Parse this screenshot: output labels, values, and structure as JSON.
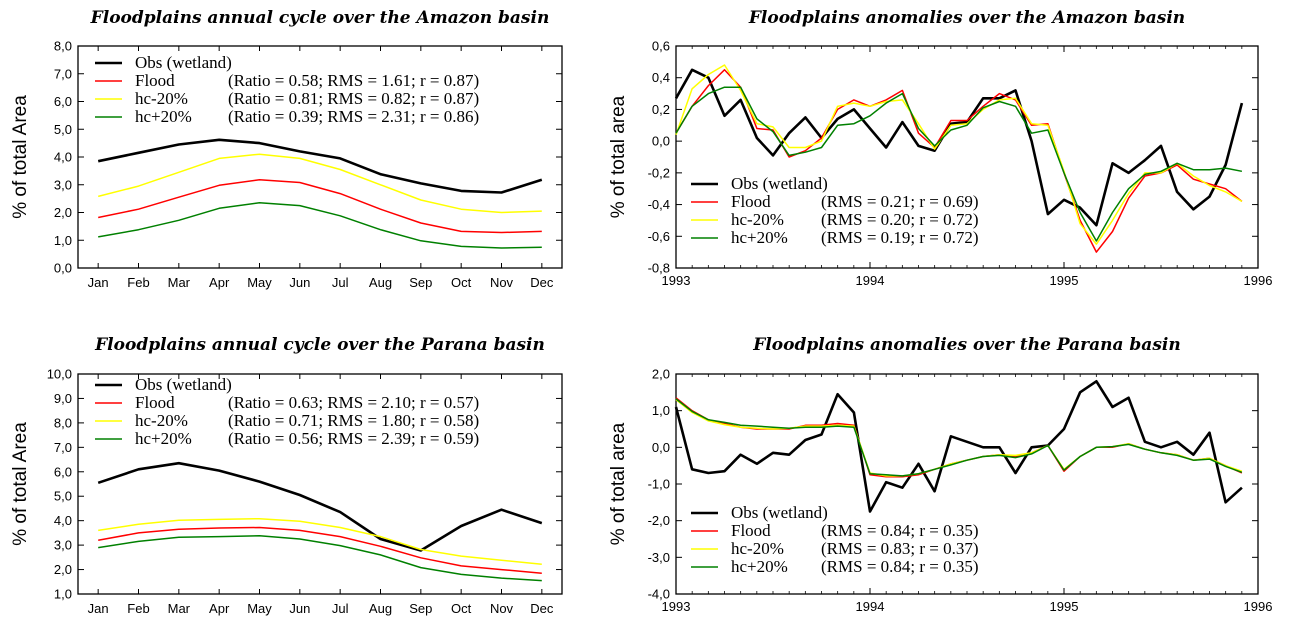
{
  "chart_data": [
    {
      "type": "line",
      "title": "Floodplains annual cycle over the Amazon basin",
      "xlabel": "",
      "ylabel": "% of total Area",
      "x_kind": "category",
      "categories": [
        "Jan",
        "Feb",
        "Mar",
        "Apr",
        "May",
        "Jun",
        "Jul",
        "Aug",
        "Sep",
        "Oct",
        "Nov",
        "Dec"
      ],
      "ylim": [
        0,
        8
      ],
      "yticks": [
        0,
        1,
        2,
        3,
        4,
        5,
        6,
        7,
        8
      ],
      "ytick_labels": [
        "0,0",
        "1,0",
        "2,0",
        "3,0",
        "4,0",
        "5,0",
        "6,0",
        "7,0",
        "8,0"
      ],
      "grid": false,
      "legend_position": "top-left",
      "series": [
        {
          "name": "Obs (wetland)",
          "stats": "",
          "color": "#000000",
          "values": [
            3.85,
            4.15,
            4.45,
            4.62,
            4.5,
            4.2,
            3.95,
            3.38,
            3.05,
            2.78,
            2.72,
            3.18
          ]
        },
        {
          "name": "Flood",
          "stats": "(Ratio = 0.58; RMS = 1.61; r = 0.87)",
          "color": "#ff0000",
          "values": [
            1.82,
            2.12,
            2.55,
            2.98,
            3.18,
            3.08,
            2.68,
            2.12,
            1.62,
            1.32,
            1.28,
            1.32
          ]
        },
        {
          "name": "hc-20%",
          "stats": "(Ratio = 0.81; RMS = 0.82; r = 0.87)",
          "color": "#ffff00",
          "values": [
            2.58,
            2.95,
            3.45,
            3.95,
            4.1,
            3.95,
            3.55,
            3.0,
            2.45,
            2.12,
            2.0,
            2.05
          ]
        },
        {
          "name": "hc+20%",
          "stats": "(Ratio = 0.39; RMS = 2.31; r = 0.86)",
          "color": "#008000",
          "values": [
            1.12,
            1.38,
            1.72,
            2.15,
            2.35,
            2.25,
            1.88,
            1.38,
            0.98,
            0.78,
            0.72,
            0.75
          ]
        }
      ]
    },
    {
      "type": "line",
      "title": "Floodplains anomalies over the Amazon basin",
      "xlabel": "",
      "ylabel": "% of total area",
      "x_kind": "time",
      "xlim": [
        1993,
        1996
      ],
      "xticks": [
        1993,
        1994,
        1995,
        1996
      ],
      "xtick_labels": [
        "1993",
        "1994",
        "1995",
        "1996"
      ],
      "ylim": [
        -0.8,
        0.6
      ],
      "yticks": [
        -0.8,
        -0.6,
        -0.4,
        -0.2,
        0,
        0.2,
        0.4,
        0.6
      ],
      "ytick_labels": [
        "-0,8",
        "-0,6",
        "-0,4",
        "-0,2",
        "0,0",
        "0,2",
        "0,4",
        "0,6"
      ],
      "grid": false,
      "legend_position": "bottom-left",
      "x": [
        1993.0,
        1993.083,
        1993.167,
        1993.25,
        1993.333,
        1993.417,
        1993.5,
        1993.583,
        1993.667,
        1993.75,
        1993.833,
        1993.917,
        1994.0,
        1994.083,
        1994.167,
        1994.25,
        1994.333,
        1994.417,
        1994.5,
        1994.583,
        1994.667,
        1994.75,
        1994.833,
        1994.917,
        1995.0,
        1995.083,
        1995.167,
        1995.25,
        1995.333,
        1995.417,
        1995.5,
        1995.583,
        1995.667,
        1995.75,
        1995.833,
        1995.917
      ],
      "series": [
        {
          "name": "Obs (wetland)",
          "stats": "",
          "color": "#000000",
          "values": [
            0.27,
            0.45,
            0.4,
            0.16,
            0.26,
            0.02,
            -0.09,
            0.05,
            0.15,
            0.02,
            0.14,
            0.2,
            0.08,
            -0.04,
            0.12,
            -0.03,
            -0.06,
            0.11,
            0.12,
            0.27,
            0.27,
            0.32,
            0.0,
            -0.46,
            -0.37,
            -0.42,
            -0.53,
            -0.14,
            -0.2,
            -0.12,
            -0.03,
            -0.32,
            -0.43,
            -0.35,
            -0.15,
            0.24
          ]
        },
        {
          "name": "Flood",
          "stats": "(RMS = 0.21; r = 0.69)",
          "color": "#ff0000",
          "values": [
            0.05,
            0.22,
            0.35,
            0.45,
            0.34,
            0.08,
            0.07,
            -0.1,
            -0.06,
            0.02,
            0.2,
            0.26,
            0.22,
            0.26,
            0.32,
            0.05,
            -0.04,
            0.13,
            0.13,
            0.22,
            0.3,
            0.26,
            0.1,
            0.11,
            -0.2,
            -0.5,
            -0.7,
            -0.57,
            -0.36,
            -0.22,
            -0.2,
            -0.15,
            -0.24,
            -0.27,
            -0.3,
            -0.38
          ]
        },
        {
          "name": "hc-20%",
          "stats": "(RMS = 0.20; r = 0.72)",
          "color": "#ffff00",
          "values": [
            0.04,
            0.33,
            0.42,
            0.48,
            0.32,
            0.11,
            0.09,
            -0.04,
            -0.04,
            0.0,
            0.22,
            0.24,
            0.22,
            0.25,
            0.26,
            0.11,
            -0.05,
            0.1,
            0.11,
            0.2,
            0.26,
            0.27,
            0.11,
            0.1,
            -0.19,
            -0.52,
            -0.65,
            -0.5,
            -0.33,
            -0.2,
            -0.2,
            -0.14,
            -0.22,
            -0.28,
            -0.32,
            -0.38
          ]
        },
        {
          "name": "hc+20%",
          "stats": "(RMS = 0.19; r = 0.72)",
          "color": "#008000",
          "values": [
            0.05,
            0.22,
            0.3,
            0.34,
            0.34,
            0.14,
            0.06,
            -0.09,
            -0.07,
            -0.04,
            0.1,
            0.11,
            0.16,
            0.24,
            0.3,
            0.08,
            -0.03,
            0.07,
            0.1,
            0.21,
            0.25,
            0.22,
            0.05,
            0.07,
            -0.2,
            -0.45,
            -0.63,
            -0.45,
            -0.3,
            -0.21,
            -0.19,
            -0.14,
            -0.18,
            -0.18,
            -0.17,
            -0.19
          ]
        }
      ]
    },
    {
      "type": "line",
      "title": "Floodplains annual cycle over the Parana basin",
      "xlabel": "",
      "ylabel": "% of total Area",
      "x_kind": "category",
      "categories": [
        "Jan",
        "Feb",
        "Mar",
        "Apr",
        "May",
        "Jun",
        "Jul",
        "Aug",
        "Sep",
        "Oct",
        "Nov",
        "Dec"
      ],
      "ylim": [
        1,
        10
      ],
      "yticks": [
        1,
        2,
        3,
        4,
        5,
        6,
        7,
        8,
        9,
        10
      ],
      "ytick_labels": [
        "1,0",
        "2,0",
        "3,0",
        "4,0",
        "5,0",
        "6,0",
        "7,0",
        "8,0",
        "9,0",
        "10,0"
      ],
      "grid": false,
      "legend_position": "top-left",
      "series": [
        {
          "name": "Obs (wetland)",
          "stats": "",
          "color": "#000000",
          "values": [
            5.55,
            6.1,
            6.35,
            6.05,
            5.6,
            5.05,
            4.35,
            3.25,
            2.78,
            3.78,
            4.45,
            3.9
          ]
        },
        {
          "name": "Flood",
          "stats": "(Ratio = 0.63; RMS = 2.10; r = 0.57)",
          "color": "#ff0000",
          "values": [
            3.2,
            3.5,
            3.65,
            3.7,
            3.72,
            3.6,
            3.35,
            2.95,
            2.48,
            2.15,
            2.0,
            1.85
          ]
        },
        {
          "name": "hc-20%",
          "stats": "(Ratio = 0.71; RMS = 1.80; r = 0.58)",
          "color": "#ffff00",
          "values": [
            3.6,
            3.85,
            4.02,
            4.05,
            4.08,
            3.98,
            3.72,
            3.35,
            2.82,
            2.55,
            2.38,
            2.22
          ]
        },
        {
          "name": "hc+20%",
          "stats": "(Ratio = 0.56; RMS = 2.39; r = 0.59)",
          "color": "#008000",
          "values": [
            2.9,
            3.15,
            3.32,
            3.35,
            3.38,
            3.25,
            2.98,
            2.6,
            2.08,
            1.8,
            1.65,
            1.55
          ]
        }
      ]
    },
    {
      "type": "line",
      "title": "Floodplains anomalies over the Parana basin",
      "xlabel": "",
      "ylabel": "% of total area",
      "x_kind": "time",
      "xlim": [
        1993,
        1996
      ],
      "xticks": [
        1993,
        1994,
        1995,
        1996
      ],
      "xtick_labels": [
        "1993",
        "1994",
        "1995",
        "1996"
      ],
      "ylim": [
        -4,
        2
      ],
      "yticks": [
        -4,
        -3,
        -2,
        -1,
        0,
        1,
        2
      ],
      "ytick_labels": [
        "-4,0",
        "-3,0",
        "-2,0",
        "-1,0",
        "0,0",
        "1,0",
        "2,0"
      ],
      "grid": false,
      "legend_position": "bottom-left",
      "x": [
        1993.0,
        1993.083,
        1993.167,
        1993.25,
        1993.333,
        1993.417,
        1993.5,
        1993.583,
        1993.667,
        1993.75,
        1993.833,
        1993.917,
        1994.0,
        1994.083,
        1994.167,
        1994.25,
        1994.333,
        1994.417,
        1994.5,
        1994.583,
        1994.667,
        1994.75,
        1994.833,
        1994.917,
        1995.0,
        1995.083,
        1995.167,
        1995.25,
        1995.333,
        1995.417,
        1995.5,
        1995.583,
        1995.667,
        1995.75,
        1995.833,
        1995.917
      ],
      "series": [
        {
          "name": "Obs (wetland)",
          "stats": "",
          "color": "#000000",
          "values": [
            1.1,
            -0.6,
            -0.7,
            -0.65,
            -0.2,
            -0.45,
            -0.15,
            -0.2,
            0.2,
            0.35,
            1.45,
            0.95,
            -1.75,
            -0.95,
            -1.1,
            -0.45,
            -1.2,
            0.3,
            0.15,
            0.0,
            0.0,
            -0.7,
            0.0,
            0.05,
            0.5,
            1.5,
            1.8,
            1.1,
            1.35,
            0.15,
            0.0,
            0.15,
            -0.2,
            0.4,
            -1.5,
            -1.1
          ]
        },
        {
          "name": "Flood",
          "stats": "(RMS = 0.84; r = 0.35)",
          "color": "#ff0000",
          "values": [
            1.35,
            1.0,
            0.75,
            0.65,
            0.55,
            0.5,
            0.5,
            0.5,
            0.6,
            0.6,
            0.65,
            0.6,
            -0.75,
            -0.8,
            -0.8,
            -0.75,
            -0.6,
            -0.45,
            -0.35,
            -0.25,
            -0.2,
            -0.25,
            -0.15,
            0.05,
            -0.65,
            -0.25,
            0.0,
            0.0,
            0.1,
            -0.05,
            -0.15,
            -0.2,
            -0.35,
            -0.3,
            -0.5,
            -0.7
          ]
        },
        {
          "name": "hc-20%",
          "stats": "(RMS = 0.83; r = 0.37)",
          "color": "#ffff00",
          "values": [
            1.3,
            0.95,
            0.72,
            0.62,
            0.55,
            0.52,
            0.5,
            0.52,
            0.58,
            0.58,
            0.6,
            0.58,
            -0.7,
            -0.78,
            -0.78,
            -0.72,
            -0.6,
            -0.45,
            -0.35,
            -0.25,
            -0.2,
            -0.22,
            -0.15,
            0.05,
            -0.6,
            -0.25,
            0.0,
            0.02,
            0.1,
            -0.05,
            -0.15,
            -0.2,
            -0.35,
            -0.3,
            -0.5,
            -0.65
          ]
        },
        {
          "name": "hc+20%",
          "stats": "(RMS = 0.84; r = 0.35)",
          "color": "#008000",
          "values": [
            1.32,
            0.98,
            0.75,
            0.68,
            0.6,
            0.58,
            0.55,
            0.52,
            0.55,
            0.55,
            0.58,
            0.55,
            -0.72,
            -0.75,
            -0.78,
            -0.72,
            -0.6,
            -0.48,
            -0.35,
            -0.25,
            -0.22,
            -0.28,
            -0.18,
            0.05,
            -0.62,
            -0.25,
            0.0,
            0.02,
            0.08,
            -0.05,
            -0.15,
            -0.22,
            -0.35,
            -0.32,
            -0.52,
            -0.68
          ]
        }
      ]
    }
  ]
}
